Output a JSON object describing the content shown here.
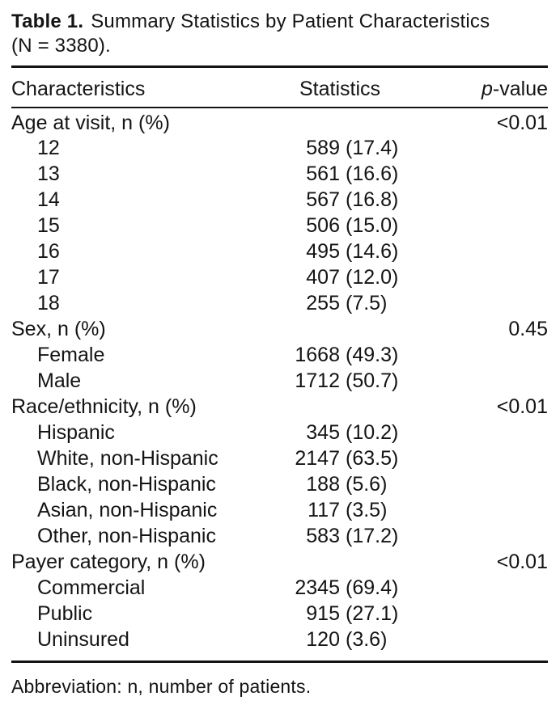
{
  "title": {
    "label": "Table 1.",
    "text": "Summary Statistics by Patient Characteristics",
    "subtitle": "(N = 3380)."
  },
  "columns": {
    "characteristics": "Characteristics",
    "statistics": "Statistics",
    "p_italic": "p",
    "p_rest": "-value"
  },
  "rows": [
    {
      "label": "Age at visit, n (%)",
      "indent": false,
      "n": "",
      "pct": "",
      "p": "<0.01"
    },
    {
      "label": "12",
      "indent": true,
      "n": "589",
      "pct": "(17.4)",
      "p": ""
    },
    {
      "label": "13",
      "indent": true,
      "n": "561",
      "pct": "(16.6)",
      "p": ""
    },
    {
      "label": "14",
      "indent": true,
      "n": "567",
      "pct": "(16.8)",
      "p": ""
    },
    {
      "label": "15",
      "indent": true,
      "n": "506",
      "pct": "(15.0)",
      "p": ""
    },
    {
      "label": "16",
      "indent": true,
      "n": "495",
      "pct": "(14.6)",
      "p": ""
    },
    {
      "label": "17",
      "indent": true,
      "n": "407",
      "pct": "(12.0)",
      "p": ""
    },
    {
      "label": "18",
      "indent": true,
      "n": "255",
      "pct": "(7.5)",
      "p": ""
    },
    {
      "label": "Sex, n (%)",
      "indent": false,
      "n": "",
      "pct": "",
      "p": "0.45"
    },
    {
      "label": "Female",
      "indent": true,
      "n": "1668",
      "pct": "(49.3)",
      "p": ""
    },
    {
      "label": "Male",
      "indent": true,
      "n": "1712",
      "pct": "(50.7)",
      "p": ""
    },
    {
      "label": "Race/ethnicity, n (%)",
      "indent": false,
      "n": "",
      "pct": "",
      "p": "<0.01"
    },
    {
      "label": "Hispanic",
      "indent": true,
      "n": "345",
      "pct": "(10.2)",
      "p": ""
    },
    {
      "label": "White, non-Hispanic",
      "indent": true,
      "n": "2147",
      "pct": "(63.5)",
      "p": ""
    },
    {
      "label": "Black, non-Hispanic",
      "indent": true,
      "n": "188",
      "pct": "(5.6)",
      "p": ""
    },
    {
      "label": "Asian, non-Hispanic",
      "indent": true,
      "n": "117",
      "pct": "(3.5)",
      "p": ""
    },
    {
      "label": "Other, non-Hispanic",
      "indent": true,
      "n": "583",
      "pct": "(17.2)",
      "p": ""
    },
    {
      "label": "Payer category, n (%)",
      "indent": false,
      "n": "",
      "pct": "",
      "p": "<0.01"
    },
    {
      "label": "Commercial",
      "indent": true,
      "n": "2345",
      "pct": "(69.4)",
      "p": ""
    },
    {
      "label": "Public",
      "indent": true,
      "n": "915",
      "pct": "(27.1)",
      "p": ""
    },
    {
      "label": "Uninsured",
      "indent": true,
      "n": "120",
      "pct": "(3.6)",
      "p": ""
    }
  ],
  "footnote": "Abbreviation: n, number of patients.",
  "colors": {
    "text": "#141414",
    "background": "#ffffff",
    "rule": "#141414"
  }
}
